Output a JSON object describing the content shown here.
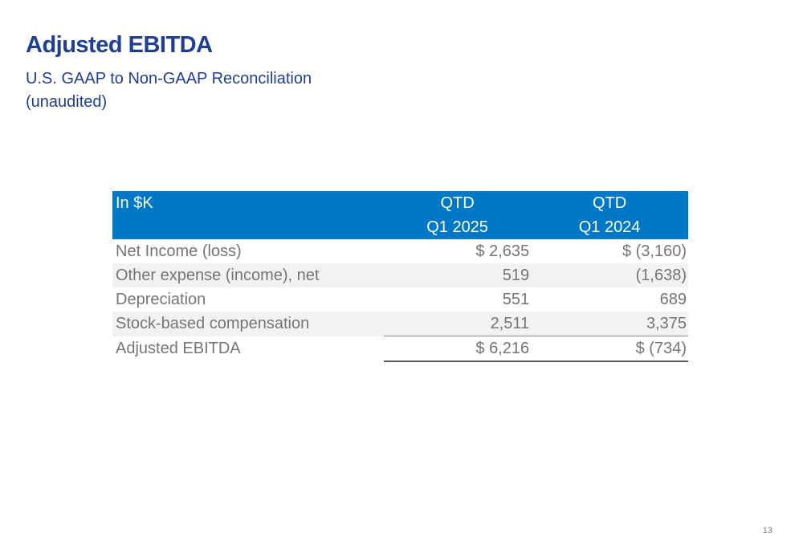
{
  "slide": {
    "title": "Adjusted EBITDA",
    "subtitle_line1": "U.S. GAAP to Non-GAAP Reconciliation",
    "subtitle_line2": "(unaudited)",
    "page_number": "13"
  },
  "table": {
    "unit_header": "In $K",
    "columns": [
      {
        "line1": "QTD",
        "line2": "Q1 2025"
      },
      {
        "line1": "QTD",
        "line2": "Q1 2024"
      }
    ],
    "rows": [
      {
        "label": "Net Income (loss)",
        "q1_2025": "$ 2,635",
        "q1_2024": "$ (3,160)"
      },
      {
        "label": "Other expense (income), net",
        "q1_2025": "519",
        "q1_2024": "(1,638)"
      },
      {
        "label": "Depreciation",
        "q1_2025": "551",
        "q1_2024": "689"
      },
      {
        "label": "Stock-based compensation",
        "q1_2025": "2,511",
        "q1_2024": "3,375"
      },
      {
        "label": "Adjusted EBITDA",
        "q1_2025": "$ 6,216",
        "q1_2024": "$ (734)"
      }
    ]
  },
  "colors": {
    "title": "#1f3e96",
    "header_fill": "#0078c8",
    "row_shade": "#f2f2f2",
    "body_text": "#757575"
  }
}
